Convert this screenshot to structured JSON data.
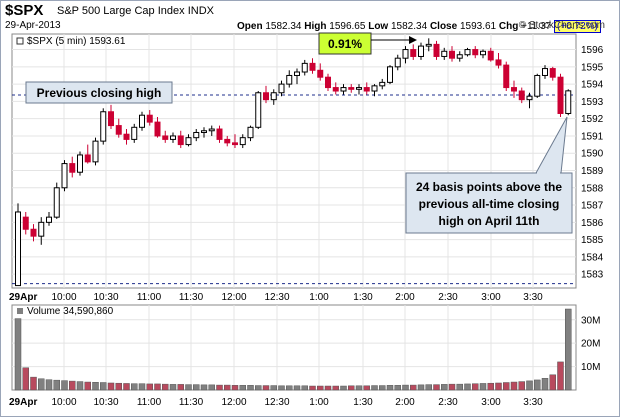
{
  "header": {
    "symbol": "$SPX",
    "name": "S&P 500 Large Cap Index",
    "exchange": "INDX",
    "date": "29-Apr-2013",
    "open_label": "Open",
    "open": "1582.34",
    "high_label": "High",
    "high": "1596.65",
    "low_label": "Low",
    "low": "1582.34",
    "close_label": "Close",
    "close": "1593.61",
    "chg_label": "Chg",
    "chg": "+11.37",
    "chg_pct": "(+0.72%)",
    "watermark": "© StockCharts.com"
  },
  "price_legend": "$SPX (5 min) 1593.61",
  "volume_legend": "Volume 34,590,860",
  "annotations": {
    "gain_box": "0.91%",
    "prev_high_label": "Previous closing high",
    "callout_line1": "24 basis points above the",
    "callout_line2": "previous all-time closing",
    "callout_line3": "high on April 11th"
  },
  "colors": {
    "up": "#000000",
    "down": "#cc0033",
    "volume": "#808080",
    "volume_down": "#cc0033",
    "grid": "#e4e4e4",
    "dash": "#1f2f8c",
    "gain_box_bg": "#ccff33",
    "callout_bg": "#dde6f0",
    "label_bg": "#dde6f0"
  },
  "chart_data": [
    {
      "type": "candlestick",
      "title": "$SPX (5 min) 1593.61",
      "x_ticks": [
        "29Apr",
        "10:00",
        "10:30",
        "11:00",
        "11:30",
        "12:00",
        "12:30",
        "1:00",
        "1:30",
        "2:00",
        "2:30",
        "3:00",
        "3:30"
      ],
      "y_ticks": [
        1583,
        1584,
        1585,
        1586,
        1587,
        1588,
        1589,
        1590,
        1591,
        1592,
        1593,
        1594,
        1595,
        1596
      ],
      "ylim": [
        1582.2,
        1596.9
      ],
      "reference_lines": [
        {
          "label": "Previous closing high",
          "value": 1593.37
        },
        {
          "value": 1582.45
        }
      ],
      "grid": true,
      "candles": [
        {
          "o": 1582.34,
          "h": 1587.1,
          "l": 1582.34,
          "c": 1586.6
        },
        {
          "o": 1586.3,
          "h": 1586.6,
          "l": 1585.3,
          "c": 1585.6
        },
        {
          "o": 1585.6,
          "h": 1585.9,
          "l": 1584.9,
          "c": 1585.2
        },
        {
          "o": 1585.2,
          "h": 1586.3,
          "l": 1584.7,
          "c": 1586.0
        },
        {
          "o": 1586.0,
          "h": 1586.6,
          "l": 1585.8,
          "c": 1586.3
        },
        {
          "o": 1586.3,
          "h": 1588.3,
          "l": 1586.2,
          "c": 1588.0
        },
        {
          "o": 1588.0,
          "h": 1589.6,
          "l": 1587.8,
          "c": 1589.4
        },
        {
          "o": 1589.4,
          "h": 1589.8,
          "l": 1588.6,
          "c": 1588.9
        },
        {
          "o": 1588.9,
          "h": 1590.1,
          "l": 1588.7,
          "c": 1589.9
        },
        {
          "o": 1589.9,
          "h": 1590.5,
          "l": 1589.4,
          "c": 1589.5
        },
        {
          "o": 1589.5,
          "h": 1590.9,
          "l": 1589.3,
          "c": 1590.7
        },
        {
          "o": 1590.7,
          "h": 1592.6,
          "l": 1590.5,
          "c": 1592.4
        },
        {
          "o": 1592.4,
          "h": 1592.8,
          "l": 1591.4,
          "c": 1591.6
        },
        {
          "o": 1591.6,
          "h": 1592.0,
          "l": 1590.9,
          "c": 1591.1
        },
        {
          "o": 1591.1,
          "h": 1591.4,
          "l": 1590.5,
          "c": 1590.8
        },
        {
          "o": 1590.8,
          "h": 1591.7,
          "l": 1590.6,
          "c": 1591.5
        },
        {
          "o": 1591.5,
          "h": 1592.4,
          "l": 1591.3,
          "c": 1592.2
        },
        {
          "o": 1592.2,
          "h": 1592.5,
          "l": 1591.6,
          "c": 1591.8
        },
        {
          "o": 1591.8,
          "h": 1592.1,
          "l": 1590.9,
          "c": 1591.0
        },
        {
          "o": 1591.0,
          "h": 1591.3,
          "l": 1590.6,
          "c": 1590.8
        },
        {
          "o": 1590.8,
          "h": 1591.2,
          "l": 1590.6,
          "c": 1591.0
        },
        {
          "o": 1591.0,
          "h": 1591.3,
          "l": 1590.3,
          "c": 1590.5
        },
        {
          "o": 1590.5,
          "h": 1591.1,
          "l": 1590.4,
          "c": 1590.9
        },
        {
          "o": 1590.9,
          "h": 1591.4,
          "l": 1590.7,
          "c": 1591.2
        },
        {
          "o": 1591.2,
          "h": 1591.5,
          "l": 1590.9,
          "c": 1591.3
        },
        {
          "o": 1591.3,
          "h": 1591.6,
          "l": 1591.0,
          "c": 1591.4
        },
        {
          "o": 1591.4,
          "h": 1591.6,
          "l": 1590.6,
          "c": 1590.8
        },
        {
          "o": 1590.8,
          "h": 1591.0,
          "l": 1590.4,
          "c": 1590.6
        },
        {
          "o": 1590.6,
          "h": 1591.1,
          "l": 1590.3,
          "c": 1590.5
        },
        {
          "o": 1590.5,
          "h": 1591.1,
          "l": 1590.3,
          "c": 1590.9
        },
        {
          "o": 1590.9,
          "h": 1591.6,
          "l": 1590.7,
          "c": 1591.5
        },
        {
          "o": 1591.5,
          "h": 1593.6,
          "l": 1591.4,
          "c": 1593.5
        },
        {
          "o": 1593.5,
          "h": 1593.9,
          "l": 1592.9,
          "c": 1593.1
        },
        {
          "o": 1593.1,
          "h": 1593.7,
          "l": 1592.8,
          "c": 1593.5
        },
        {
          "o": 1593.5,
          "h": 1594.2,
          "l": 1593.3,
          "c": 1594.0
        },
        {
          "o": 1594.0,
          "h": 1594.8,
          "l": 1593.8,
          "c": 1594.5
        },
        {
          "o": 1594.5,
          "h": 1594.9,
          "l": 1594.0,
          "c": 1594.7
        },
        {
          "o": 1594.7,
          "h": 1595.4,
          "l": 1594.5,
          "c": 1595.2
        },
        {
          "o": 1595.2,
          "h": 1595.5,
          "l": 1594.6,
          "c": 1594.8
        },
        {
          "o": 1594.8,
          "h": 1595.2,
          "l": 1594.2,
          "c": 1594.4
        },
        {
          "o": 1594.4,
          "h": 1594.6,
          "l": 1593.6,
          "c": 1593.8
        },
        {
          "o": 1593.8,
          "h": 1594.1,
          "l": 1593.4,
          "c": 1593.6
        },
        {
          "o": 1593.6,
          "h": 1594.0,
          "l": 1593.4,
          "c": 1593.8
        },
        {
          "o": 1593.8,
          "h": 1594.0,
          "l": 1593.5,
          "c": 1593.7
        },
        {
          "o": 1593.7,
          "h": 1594.0,
          "l": 1593.4,
          "c": 1593.8
        },
        {
          "o": 1593.8,
          "h": 1594.1,
          "l": 1593.4,
          "c": 1593.6
        },
        {
          "o": 1593.6,
          "h": 1594.0,
          "l": 1593.3,
          "c": 1593.9
        },
        {
          "o": 1593.9,
          "h": 1594.3,
          "l": 1593.7,
          "c": 1594.1
        },
        {
          "o": 1594.1,
          "h": 1595.1,
          "l": 1594.0,
          "c": 1595.0
        },
        {
          "o": 1595.0,
          "h": 1595.7,
          "l": 1594.8,
          "c": 1595.5
        },
        {
          "o": 1595.5,
          "h": 1596.2,
          "l": 1595.2,
          "c": 1596.0
        },
        {
          "o": 1596.0,
          "h": 1596.3,
          "l": 1595.4,
          "c": 1595.6
        },
        {
          "o": 1595.6,
          "h": 1596.4,
          "l": 1595.4,
          "c": 1596.2
        },
        {
          "o": 1596.2,
          "h": 1596.65,
          "l": 1595.9,
          "c": 1596.3
        },
        {
          "o": 1596.3,
          "h": 1596.5,
          "l": 1595.4,
          "c": 1595.6
        },
        {
          "o": 1595.6,
          "h": 1596.1,
          "l": 1595.4,
          "c": 1595.9
        },
        {
          "o": 1595.9,
          "h": 1596.2,
          "l": 1595.3,
          "c": 1595.5
        },
        {
          "o": 1595.5,
          "h": 1595.9,
          "l": 1595.3,
          "c": 1595.7
        },
        {
          "o": 1595.7,
          "h": 1596.1,
          "l": 1595.6,
          "c": 1596.0
        },
        {
          "o": 1596.0,
          "h": 1596.2,
          "l": 1595.5,
          "c": 1595.7
        },
        {
          "o": 1595.7,
          "h": 1596.0,
          "l": 1595.5,
          "c": 1595.9
        },
        {
          "o": 1595.9,
          "h": 1596.1,
          "l": 1595.3,
          "c": 1595.4
        },
        {
          "o": 1595.4,
          "h": 1595.8,
          "l": 1594.9,
          "c": 1595.1
        },
        {
          "o": 1595.1,
          "h": 1595.3,
          "l": 1593.6,
          "c": 1593.8
        },
        {
          "o": 1593.8,
          "h": 1594.2,
          "l": 1593.2,
          "c": 1593.6
        },
        {
          "o": 1593.6,
          "h": 1593.8,
          "l": 1592.9,
          "c": 1593.1
        },
        {
          "o": 1593.1,
          "h": 1593.5,
          "l": 1592.6,
          "c": 1593.3
        },
        {
          "o": 1593.3,
          "h": 1594.6,
          "l": 1593.2,
          "c": 1594.5
        },
        {
          "o": 1594.5,
          "h": 1595.1,
          "l": 1594.3,
          "c": 1594.9
        },
        {
          "o": 1594.9,
          "h": 1595.0,
          "l": 1594.2,
          "c": 1594.4
        },
        {
          "o": 1594.4,
          "h": 1594.6,
          "l": 1592.1,
          "c": 1592.3
        },
        {
          "o": 1592.3,
          "h": 1593.7,
          "l": 1592.2,
          "c": 1593.61
        }
      ]
    },
    {
      "type": "bar",
      "title": "Volume 34,590,860",
      "y_ticks": [
        "10M",
        "20M",
        "30M"
      ],
      "ylim": [
        0,
        34.6
      ],
      "unit": "millions",
      "values": [
        30.5,
        9.5,
        5.5,
        4.8,
        4.4,
        4.2,
        4.0,
        3.8,
        3.6,
        3.4,
        3.3,
        3.2,
        3.0,
        2.9,
        2.8,
        2.7,
        2.7,
        2.6,
        2.6,
        2.5,
        2.4,
        2.4,
        2.3,
        2.3,
        2.2,
        2.2,
        2.1,
        2.1,
        2.0,
        2.0,
        2.0,
        1.9,
        1.9,
        1.9,
        1.8,
        1.8,
        1.8,
        1.8,
        1.7,
        1.7,
        1.7,
        1.7,
        1.7,
        1.8,
        1.8,
        1.8,
        1.9,
        1.9,
        2.0,
        2.0,
        2.1,
        2.1,
        2.2,
        2.3,
        2.3,
        2.4,
        2.5,
        2.5,
        2.6,
        2.7,
        2.8,
        2.9,
        3.0,
        3.2,
        3.4,
        3.6,
        3.9,
        4.3,
        5.0,
        6.5,
        12.0,
        34.6
      ]
    }
  ]
}
